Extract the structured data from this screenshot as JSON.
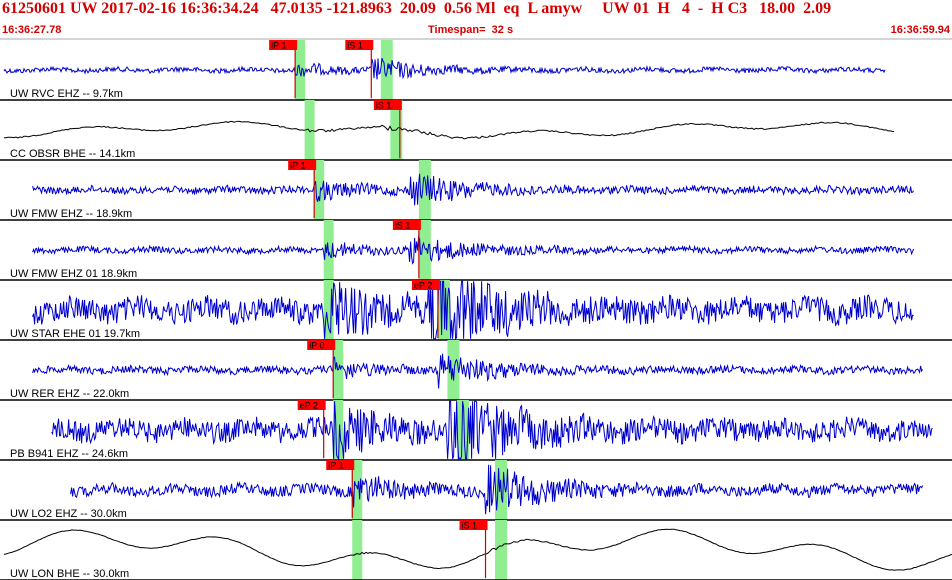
{
  "header": {
    "title": "61250601 UW 2017-02-16 16:36:34.24   47.0135 -121.8963  20.09  0.56 Ml  eq  L amyw     UW 01  H   4  -  H C3   18.00  2.09",
    "start_time": "16:36:27.78",
    "timespan": "Timespan=  32 s",
    "end_time": "16:36:59.94"
  },
  "colors": {
    "trace": "#0000cc",
    "trace_broadband": "#000000",
    "pick_flag": "#ff0000",
    "pick_line": "#cc0000",
    "window": "#90ee90",
    "separator": "#000000",
    "header_text": "#d40000"
  },
  "channels": [
    {
      "label": "UW RVC EHZ -- 9.7km",
      "color": "blue",
      "amp": 0.1,
      "noise": 0.08,
      "start": 0.0,
      "end": 0.93,
      "green": [
        0.31,
        0.4
      ],
      "picks": [
        {
          "text": "iP 1",
          "t": 0.31
        },
        {
          "text": "iS 1",
          "t": 0.39
        }
      ]
    },
    {
      "label": "CC OBSR BHE -- 14.1km",
      "color": "black",
      "amp": 0.1,
      "noise": 0.02,
      "start": 0.0,
      "end": 0.94,
      "green": [
        0.32,
        0.41
      ],
      "picks": [
        {
          "text": "iS 1",
          "t": 0.42
        }
      ]
    },
    {
      "label": "UW FMW EHZ -- 18.9km",
      "color": "blue",
      "amp": 0.12,
      "noise": 0.12,
      "start": 0.03,
      "end": 0.96,
      "green": [
        0.33,
        0.44
      ],
      "picks": [
        {
          "text": "iP 1",
          "t": 0.33
        }
      ]
    },
    {
      "label": "UW FMW EHZ 01 18.9km",
      "color": "blue",
      "amp": 0.1,
      "noise": 0.1,
      "start": 0.03,
      "end": 0.96,
      "green": [
        0.34,
        0.44
      ],
      "picks": [
        {
          "text": "iS 1",
          "t": 0.44
        }
      ]
    },
    {
      "label": "UW STAR EHE 01 19.7km",
      "color": "blue",
      "amp": 0.4,
      "noise": 0.4,
      "start": 0.03,
      "end": 0.96,
      "green": [
        0.34,
        0.46
      ],
      "picks": [
        {
          "text": "eP 2",
          "t": 0.46
        }
      ]
    },
    {
      "label": "UW RER EHZ -- 22.0km",
      "color": "blue",
      "amp": 0.12,
      "noise": 0.12,
      "start": 0.03,
      "end": 0.97,
      "green": [
        0.35,
        0.47
      ],
      "picks": [
        {
          "text": "iP 0",
          "t": 0.35
        }
      ]
    },
    {
      "label": "PB B941 EHZ -- 24.6km",
      "color": "blue",
      "amp": 0.35,
      "noise": 0.35,
      "start": 0.05,
      "end": 0.98,
      "green": [
        0.35,
        0.48
      ],
      "picks": [
        {
          "text": "eP 2",
          "t": 0.34
        }
      ]
    },
    {
      "label": "UW LO2 EHZ -- 30.0km",
      "color": "blue",
      "amp": 0.22,
      "noise": 0.18,
      "start": 0.07,
      "end": 0.97,
      "green": [
        0.37,
        0.52
      ],
      "picks": [
        {
          "text": "iP 1",
          "t": 0.37
        }
      ]
    },
    {
      "label": "UW LON BHE -- 30.0km",
      "color": "black",
      "amp": 0.25,
      "noise": 0.01,
      "start": 0.0,
      "end": 1.0,
      "green": [
        0.37,
        0.52
      ],
      "picks": [
        {
          "text": "iS 1",
          "t": 0.51
        }
      ]
    }
  ]
}
